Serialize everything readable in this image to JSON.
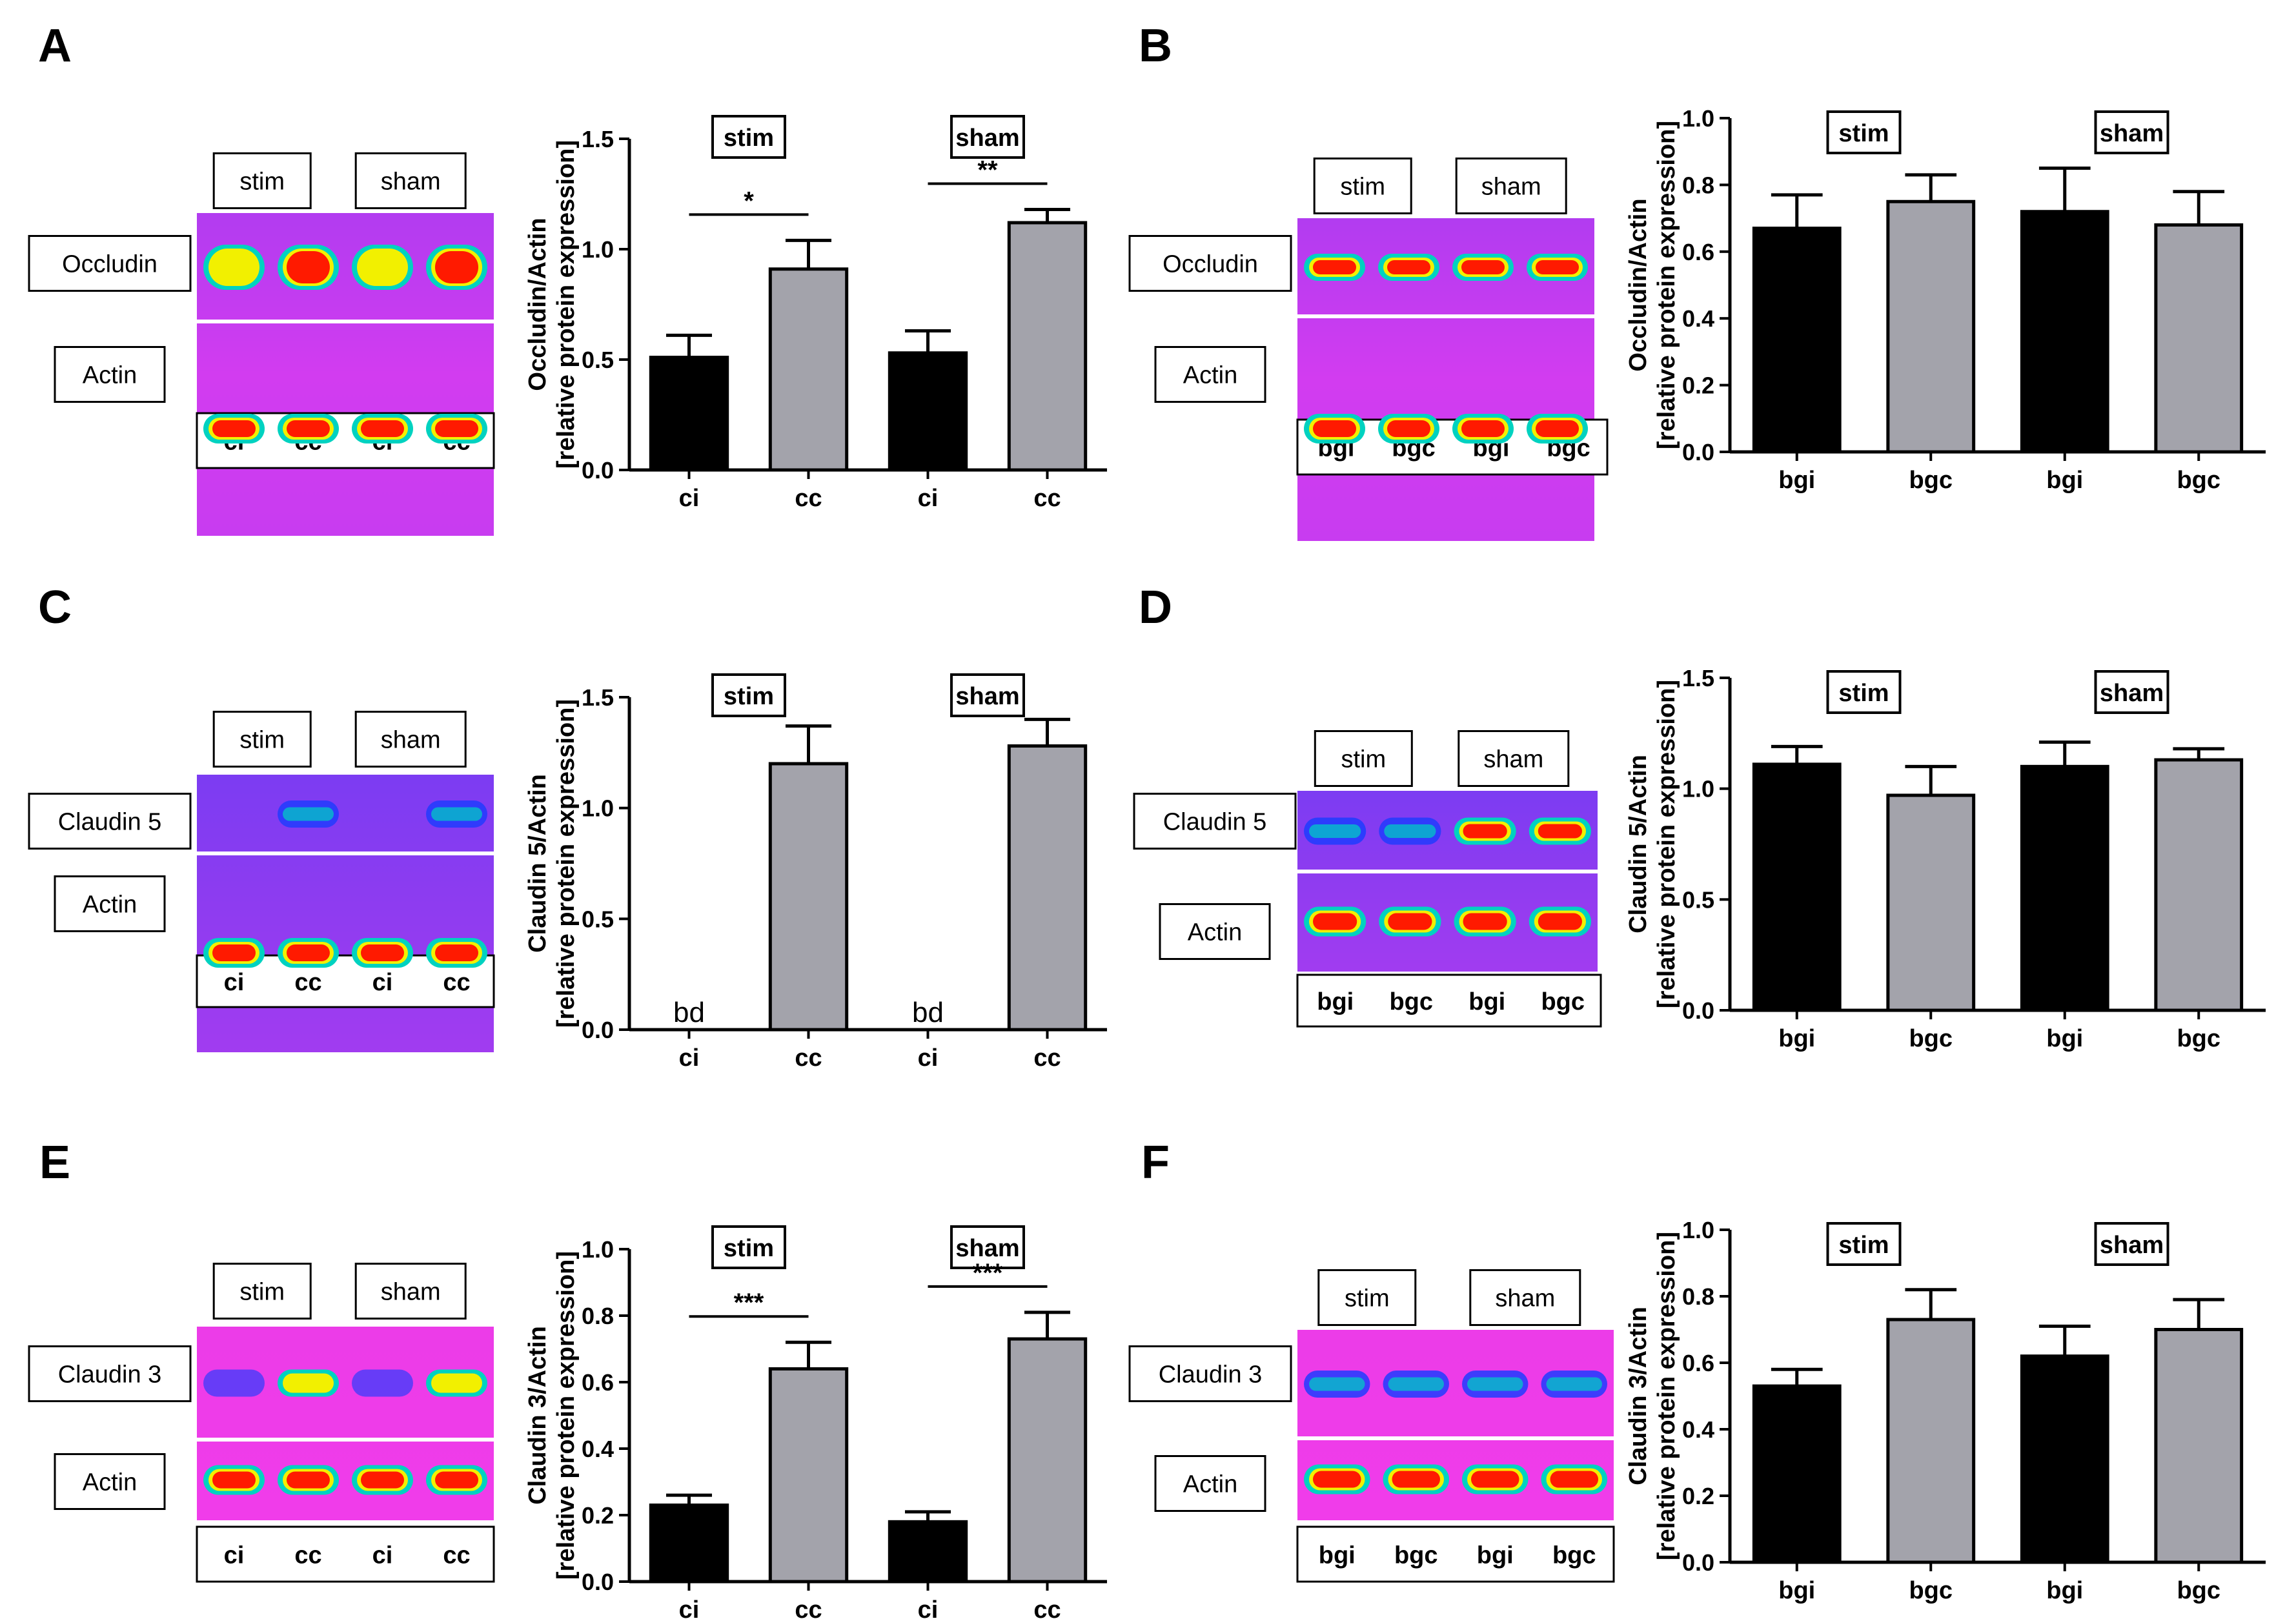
{
  "chart_data": [
    {
      "type": "bar",
      "panel": "A",
      "protein": "Occludin",
      "blot": {
        "labels_top": [
          "stim",
          "sham"
        ],
        "rows": [
          "Occludin",
          "Actin"
        ],
        "lanes": [
          "ci",
          "cc",
          "ci",
          "cc"
        ],
        "style": "magenta"
      },
      "categories": [
        "ci",
        "cc",
        "ci",
        "cc"
      ],
      "groups": [
        "stim",
        "sham"
      ],
      "values": [
        0.51,
        0.91,
        0.53,
        1.12
      ],
      "errors": [
        0.1,
        0.13,
        0.1,
        0.06
      ],
      "annotations": [
        "",
        "",
        "",
        ""
      ],
      "significance": [
        {
          "pair": [
            0,
            1
          ],
          "label": "*"
        },
        {
          "pair": [
            2,
            3
          ],
          "label": "**"
        }
      ],
      "ylabel": [
        "Occludin/Actin",
        "[relative protein expression]"
      ],
      "ylim": [
        0,
        1.5
      ],
      "yticks": [
        "0.0",
        "0.5",
        "1.0",
        "1.5"
      ]
    },
    {
      "type": "bar",
      "panel": "B",
      "protein": "Occludin",
      "blot": {
        "labels_top": [
          "stim",
          "sham"
        ],
        "rows": [
          "Occludin",
          "Actin"
        ],
        "lanes": [
          "bgi",
          "bgc",
          "bgi",
          "bgc"
        ],
        "style": "magenta"
      },
      "categories": [
        "bgi",
        "bgc",
        "bgi",
        "bgc"
      ],
      "groups": [
        "stim",
        "sham"
      ],
      "values": [
        0.67,
        0.75,
        0.72,
        0.68
      ],
      "errors": [
        0.1,
        0.08,
        0.13,
        0.1
      ],
      "annotations": [
        "",
        "",
        "",
        ""
      ],
      "significance": [],
      "ylabel": [
        "Occludin/Actin",
        "[relative protein expression]"
      ],
      "ylim": [
        0,
        1.0
      ],
      "yticks": [
        "0.0",
        "0.2",
        "0.4",
        "0.6",
        "0.8",
        "1.0"
      ]
    },
    {
      "type": "bar",
      "panel": "C",
      "protein": "Claudin 5",
      "blot": {
        "labels_top": [
          "stim",
          "sham"
        ],
        "rows": [
          "Claudin 5",
          "Actin"
        ],
        "lanes": [
          "ci",
          "cc",
          "ci",
          "cc"
        ],
        "style": "violet"
      },
      "categories": [
        "ci",
        "cc",
        "ci",
        "cc"
      ],
      "groups": [
        "stim",
        "sham"
      ],
      "values": [
        0,
        1.2,
        0,
        1.28
      ],
      "errors": [
        0,
        0.17,
        0,
        0.12
      ],
      "annotations": [
        "bd",
        "",
        "bd",
        ""
      ],
      "significance": [],
      "ylabel": [
        "Claudin 5/Actin",
        "[relative protein expression]"
      ],
      "ylim": [
        0,
        1.5
      ],
      "yticks": [
        "0.0",
        "0.5",
        "1.0",
        "1.5"
      ]
    },
    {
      "type": "bar",
      "panel": "D",
      "protein": "Claudin 5",
      "blot": {
        "labels_top": [
          "stim",
          "sham"
        ],
        "rows": [
          "Claudin 5",
          "Actin"
        ],
        "lanes": [
          "bgi",
          "bgc",
          "bgi",
          "bgc"
        ],
        "style": "violet"
      },
      "categories": [
        "bgi",
        "bgc",
        "bgi",
        "bgc"
      ],
      "groups": [
        "stim",
        "sham"
      ],
      "values": [
        1.11,
        0.97,
        1.1,
        1.13
      ],
      "errors": [
        0.08,
        0.13,
        0.11,
        0.05
      ],
      "annotations": [
        "",
        "",
        "",
        ""
      ],
      "significance": [],
      "ylabel": [
        "Claudin 5/Actin",
        "[relative protein expression]"
      ],
      "ylim": [
        0,
        1.5
      ],
      "yticks": [
        "0.0",
        "0.5",
        "1.0",
        "1.5"
      ]
    },
    {
      "type": "bar",
      "panel": "E",
      "protein": "Claudin 3",
      "blot": {
        "labels_top": [
          "stim",
          "sham"
        ],
        "rows": [
          "Claudin 3",
          "Actin"
        ],
        "lanes": [
          "ci",
          "cc",
          "ci",
          "cc"
        ],
        "style": "pink"
      },
      "categories": [
        "ci",
        "cc",
        "ci",
        "cc"
      ],
      "groups": [
        "stim",
        "sham"
      ],
      "values": [
        0.23,
        0.64,
        0.18,
        0.73
      ],
      "errors": [
        0.03,
        0.08,
        0.03,
        0.08
      ],
      "annotations": [
        "",
        "",
        "",
        ""
      ],
      "significance": [
        {
          "pair": [
            0,
            1
          ],
          "label": "***"
        },
        {
          "pair": [
            2,
            3
          ],
          "label": "***"
        }
      ],
      "ylabel": [
        "Claudin 3/Actin",
        "[relative protein expression]"
      ],
      "ylim": [
        0,
        1.0
      ],
      "yticks": [
        "0.0",
        "0.2",
        "0.4",
        "0.6",
        "0.8",
        "1.0"
      ]
    },
    {
      "type": "bar",
      "panel": "F",
      "protein": "Claudin 3",
      "blot": {
        "labels_top": [
          "stim",
          "sham"
        ],
        "rows": [
          "Claudin 3",
          "Actin"
        ],
        "lanes": [
          "bgi",
          "bgc",
          "bgi",
          "bgc"
        ],
        "style": "pink"
      },
      "categories": [
        "bgi",
        "bgc",
        "bgi",
        "bgc"
      ],
      "groups": [
        "stim",
        "sham"
      ],
      "values": [
        0.53,
        0.73,
        0.62,
        0.7
      ],
      "errors": [
        0.05,
        0.09,
        0.09,
        0.09
      ],
      "annotations": [
        "",
        "",
        "",
        ""
      ],
      "significance": [],
      "ylabel": [
        "Claudin 3/Actin",
        "[relative protein expression]"
      ],
      "ylim": [
        0,
        1.0
      ],
      "yticks": [
        "0.0",
        "0.2",
        "0.4",
        "0.6",
        "0.8",
        "1.0"
      ]
    }
  ],
  "colors": {
    "ipsi_bar": "#000000",
    "contra_bar": "#a3a3ab",
    "blot_magenta": "#d23cf0",
    "blot_violet": "#8a3cf0",
    "blot_pink": "#ee3ce8",
    "band_core": "#ff1a00",
    "band_mid": "#f2f000",
    "band_outer": "#00d2c0",
    "band_weak": "#1a3cff"
  }
}
